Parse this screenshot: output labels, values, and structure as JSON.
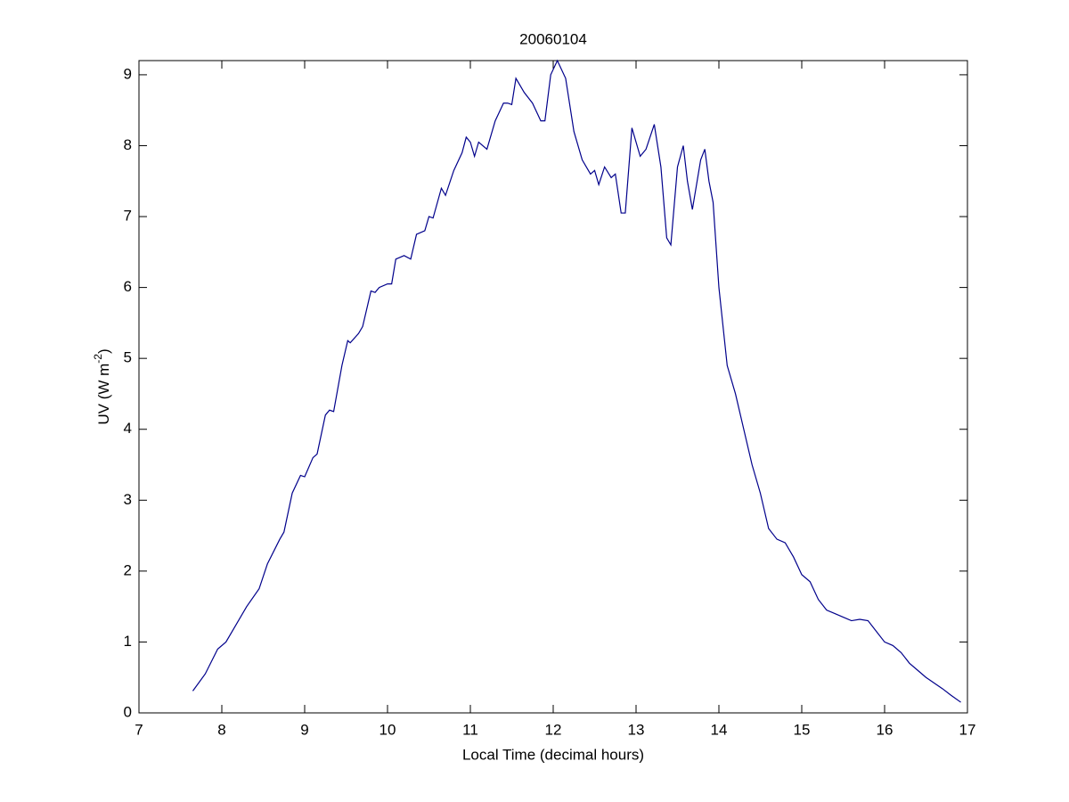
{
  "chart_data": {
    "type": "line",
    "title": "20060104",
    "xlabel": "Local Time (decimal hours)",
    "ylabel": {
      "text": "UV (W m",
      "superscript": "-2",
      "after": ")"
    },
    "x": [
      7.65,
      7.8,
      7.95,
      8.05,
      8.15,
      8.3,
      8.45,
      8.55,
      8.7,
      8.75,
      8.85,
      8.95,
      9.0,
      9.1,
      9.15,
      9.25,
      9.3,
      9.35,
      9.45,
      9.52,
      9.55,
      9.65,
      9.7,
      9.8,
      9.85,
      9.9,
      10.0,
      10.05,
      10.1,
      10.2,
      10.28,
      10.35,
      10.45,
      10.5,
      10.55,
      10.65,
      10.7,
      10.8,
      10.9,
      10.95,
      11.0,
      11.05,
      11.1,
      11.2,
      11.3,
      11.4,
      11.45,
      11.5,
      11.55,
      11.65,
      11.75,
      11.85,
      11.9,
      11.97,
      12.05,
      12.15,
      12.25,
      12.35,
      12.45,
      12.5,
      12.55,
      12.62,
      12.7,
      12.75,
      12.82,
      12.87,
      12.95,
      13.05,
      13.12,
      13.22,
      13.3,
      13.37,
      13.42,
      13.5,
      13.57,
      13.62,
      13.68,
      13.78,
      13.83,
      13.88,
      13.93,
      14.0,
      14.1,
      14.2,
      14.3,
      14.4,
      14.5,
      14.6,
      14.7,
      14.8,
      14.9,
      15.0,
      15.1,
      15.2,
      15.3,
      15.4,
      15.5,
      15.6,
      15.7,
      15.8,
      15.9,
      16.0,
      16.1,
      16.2,
      16.3,
      16.4,
      16.5,
      16.6,
      16.7,
      16.8,
      16.92
    ],
    "series": [
      {
        "color": "#00008b",
        "values": [
          0.31,
          0.55,
          0.9,
          1.0,
          1.2,
          1.5,
          1.75,
          2.1,
          2.45,
          2.55,
          3.1,
          3.35,
          3.33,
          3.6,
          3.65,
          4.2,
          4.27,
          4.25,
          4.9,
          5.25,
          5.22,
          5.35,
          5.45,
          5.95,
          5.93,
          6.0,
          6.05,
          6.05,
          6.4,
          6.45,
          6.4,
          6.75,
          6.8,
          7.0,
          6.98,
          7.4,
          7.3,
          7.65,
          7.9,
          8.12,
          8.05,
          7.85,
          8.05,
          7.95,
          8.35,
          8.6,
          8.6,
          8.58,
          8.95,
          8.75,
          8.6,
          8.35,
          8.35,
          9.0,
          9.2,
          8.95,
          8.2,
          7.8,
          7.6,
          7.65,
          7.45,
          7.7,
          7.55,
          7.6,
          7.05,
          7.05,
          8.25,
          7.85,
          7.95,
          8.3,
          7.7,
          6.7,
          6.6,
          7.7,
          8.0,
          7.5,
          7.1,
          7.8,
          7.95,
          7.5,
          7.2,
          6.0,
          4.9,
          4.5,
          4.0,
          3.5,
          3.1,
          2.6,
          2.45,
          2.4,
          2.2,
          1.95,
          1.85,
          1.6,
          1.45,
          1.4,
          1.35,
          1.3,
          1.32,
          1.3,
          1.15,
          1.0,
          0.95,
          0.85,
          0.7,
          0.6,
          0.5,
          0.42,
          0.34,
          0.25,
          0.15
        ]
      }
    ],
    "xlim": [
      7,
      17
    ],
    "xticks": [
      7,
      8,
      9,
      10,
      11,
      12,
      13,
      14,
      15,
      16,
      17
    ],
    "ylim": [
      0,
      9.2
    ],
    "yticks": [
      0,
      1,
      2,
      3,
      4,
      5,
      6,
      7,
      8,
      9
    ]
  }
}
